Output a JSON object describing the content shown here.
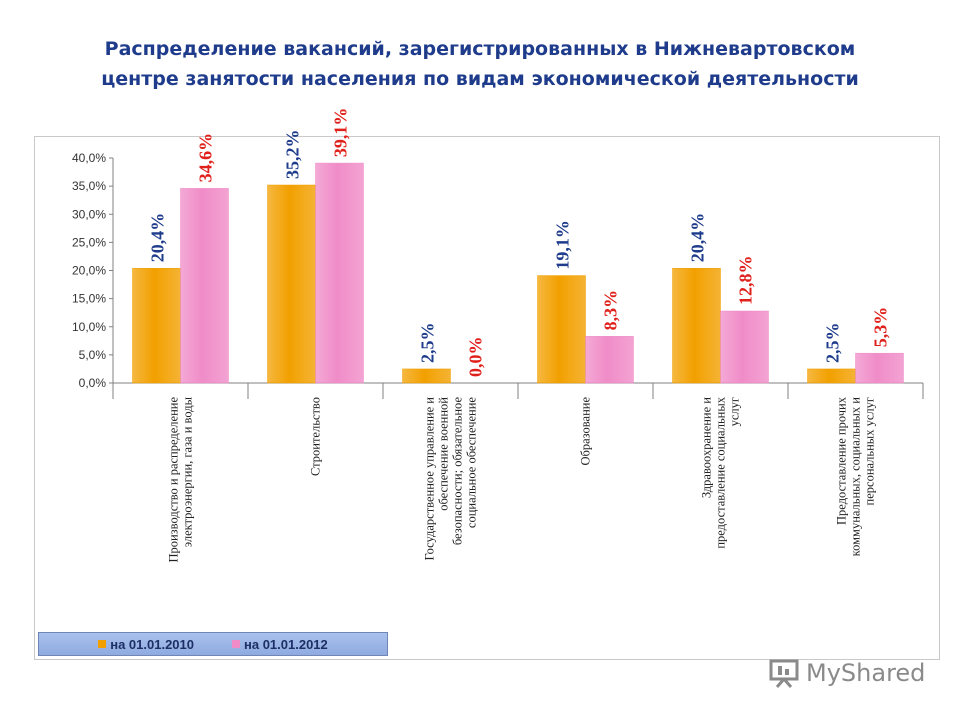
{
  "title": {
    "line1": "Распределение вакансий, зарегистрированных в Нижневартовском",
    "line2": "центре занятости населения по видам экономической деятельности"
  },
  "chart_data": {
    "type": "bar",
    "categories": [
      [
        "Производство и распределение",
        "электроэнергии, газа и воды"
      ],
      [
        "Строительство"
      ],
      [
        "Государственное управление и",
        "обеспечение военной",
        "безопасности; обязательное",
        "социальное обеспечение"
      ],
      [
        "Образование"
      ],
      [
        "Здравоохранение и",
        "предоставление социальных",
        "услуг"
      ],
      [
        "Предоставление прочих",
        "коммунальных, социальных и",
        "персональных услуг"
      ]
    ],
    "series": [
      {
        "name": "на 01.01.2010",
        "values": [
          20.4,
          35.2,
          2.5,
          19.1,
          20.4,
          2.5
        ],
        "labels": [
          "20,4%",
          "35,2%",
          "2,5%",
          "19,1%",
          "20,4%",
          "2,5%"
        ],
        "color": "#F2A000",
        "label_color": "#1F3C8C"
      },
      {
        "name": "на 01.01.2012",
        "values": [
          34.6,
          39.1,
          0.0,
          8.3,
          12.8,
          5.3
        ],
        "labels": [
          "34,6%",
          "39,1%",
          "0,0%",
          "8,3%",
          "12,8%",
          "5,3%"
        ],
        "color": "#F08CC8",
        "label_color": "#E0201A"
      }
    ],
    "y_ticks": [
      "0,0%",
      "5,0%",
      "10,0%",
      "15,0%",
      "20,0%",
      "25,0%",
      "30,0%",
      "35,0%",
      "40,0%"
    ],
    "ylim": [
      0,
      40
    ],
    "grid": false,
    "legend_position": "bottom-left"
  },
  "watermark": {
    "text": "MyShared"
  },
  "colors": {
    "title": "#1F3C8C",
    "legend_bg": "#9DB5E6"
  }
}
